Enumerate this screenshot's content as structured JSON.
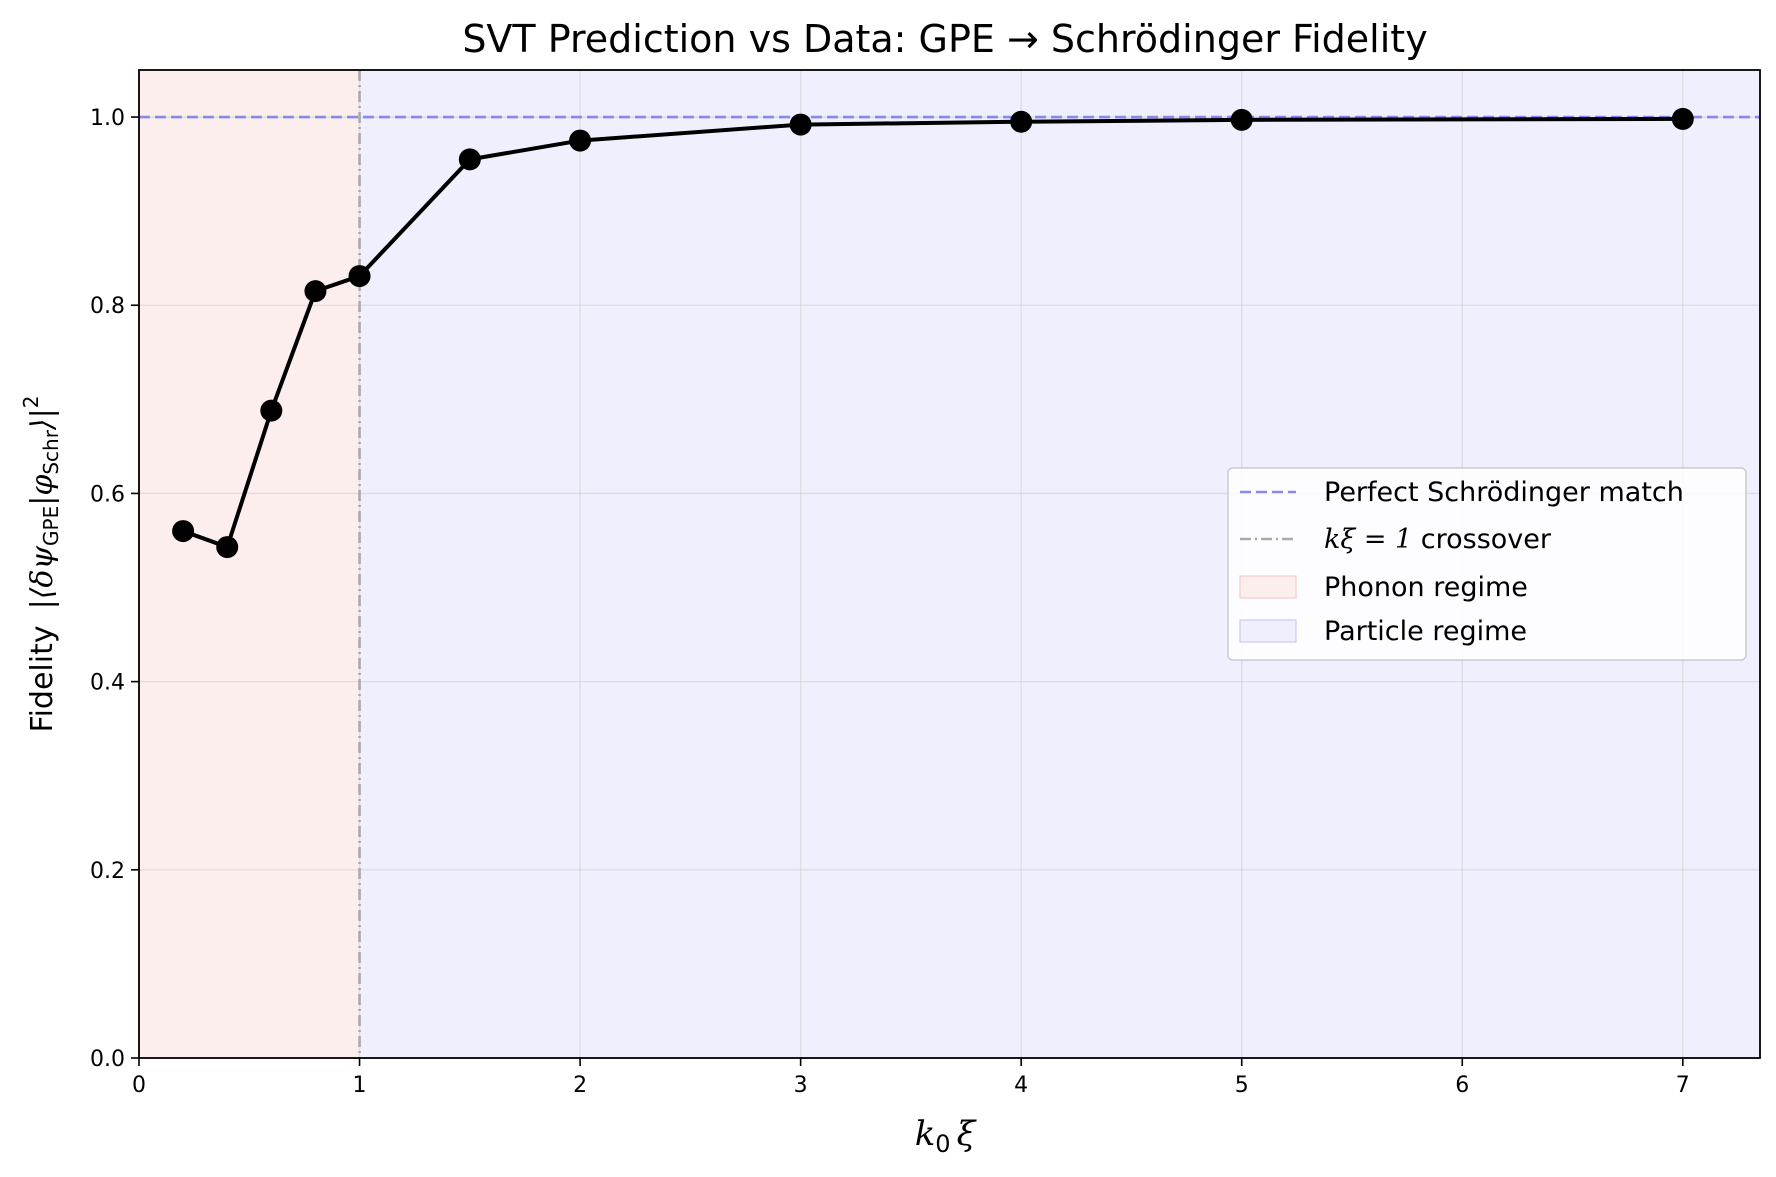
{
  "chart_data": {
    "type": "line",
    "title": "SVT Prediction vs Data: GPE → Schrödinger Fidelity",
    "xlabel": {
      "main": "k",
      "sub": "0",
      "tail": "ξ"
    },
    "ylabel": {
      "plain": "Fidelity",
      "math": "|⟨δψ",
      "sub1": "GPE",
      "mid": "|φ",
      "sub2": "Schr",
      "close": "⟩|",
      "sup": "2"
    },
    "xlim": [
      0,
      7.35
    ],
    "ylim": [
      0,
      1.05
    ],
    "xticks": [
      0,
      1,
      2,
      3,
      4,
      5,
      6,
      7
    ],
    "yticks": [
      0.0,
      0.2,
      0.4,
      0.6,
      0.8,
      1.0
    ],
    "ytick_labels": [
      "0.0",
      "0.2",
      "0.4",
      "0.6",
      "0.8",
      "1.0"
    ],
    "grid": true,
    "series": [
      {
        "color": "#000000",
        "x": [
          0.2,
          0.4,
          0.6,
          0.8,
          1.0,
          1.5,
          2.0,
          3.0,
          4.0,
          5.0,
          7.0
        ],
        "y": [
          0.56,
          0.543,
          0.688,
          0.815,
          0.831,
          0.955,
          0.975,
          0.992,
          0.995,
          0.997,
          0.998
        ]
      }
    ],
    "reference_line": {
      "y": 1.0,
      "color": "#8888ee",
      "style": "dashed"
    },
    "crossover_line": {
      "x": 1.0,
      "color": "#aaaaaa",
      "style": "dashdot"
    },
    "regions": [
      {
        "name": "Phonon regime",
        "x0": 0,
        "x1": 1,
        "color": "#fdeeee"
      },
      {
        "name": "Particle regime",
        "x0": 1,
        "x1": 7.35,
        "color": "#efeffd"
      }
    ],
    "legend": {
      "placement": "center-right",
      "entries": [
        {
          "kind": "dashed",
          "color": "#8888ee",
          "text": "Perfect Schrödinger match"
        },
        {
          "kind": "dashdot",
          "color": "#aaaaaa",
          "math": "kξ = 1",
          "text": " crossover"
        },
        {
          "kind": "patch",
          "color": "#fdeeee",
          "edge": "#f6c9c9",
          "text": "Phonon regime"
        },
        {
          "kind": "patch",
          "color": "#efeffd",
          "edge": "#c9c9f6",
          "text": "Particle regime"
        }
      ]
    }
  }
}
